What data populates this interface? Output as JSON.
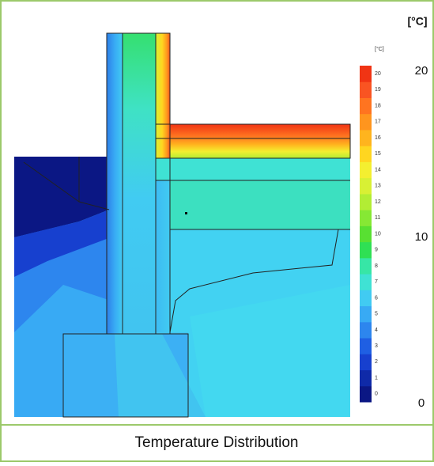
{
  "figure": {
    "legend": {
      "unit": "[°C]",
      "ticks": [
        0,
        1,
        2,
        3,
        4,
        5,
        6,
        7,
        8,
        9,
        10,
        11,
        12,
        13,
        14,
        15,
        16,
        17,
        18,
        19,
        20
      ],
      "colors": [
        "#0b1784",
        "#0f2aa8",
        "#1740cf",
        "#1f5fe3",
        "#2d86ee",
        "#38aaf4",
        "#41cbf2",
        "#3fe2d4",
        "#37e6a6",
        "#2fe054",
        "#58e032",
        "#86e834",
        "#b2ed34",
        "#d8f034",
        "#f4ef30",
        "#ffd620",
        "#ffb41e",
        "#ff951e",
        "#ff7420",
        "#f95422",
        "#f03414"
      ]
    },
    "side_scale": {
      "unit": "[°C]",
      "ticks": [
        20,
        10,
        0
      ]
    },
    "caption": "Temperature Distribution"
  }
}
